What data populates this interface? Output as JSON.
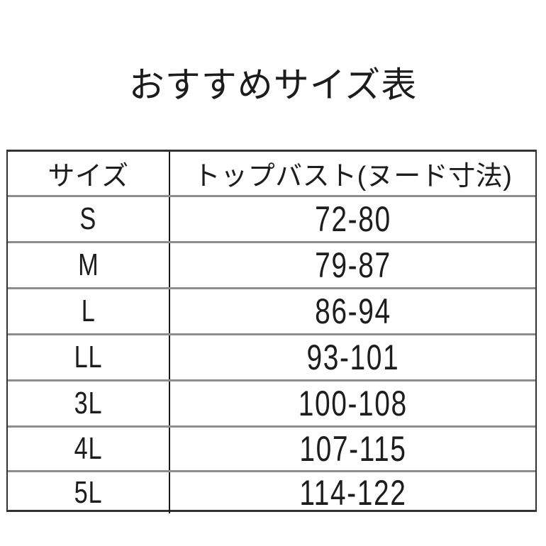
{
  "title": "おすすめサイズ表",
  "table": {
    "headers": {
      "size": "サイズ",
      "bust": "トップバスト(ヌード寸法)"
    },
    "rows": [
      {
        "size": "S",
        "bust": "72-80"
      },
      {
        "size": "M",
        "bust": "79-87"
      },
      {
        "size": "L",
        "bust": "86-94"
      },
      {
        "size": "LL",
        "bust": "93-101"
      },
      {
        "size": "3L",
        "bust": "100-108"
      },
      {
        "size": "4L",
        "bust": "107-115"
      },
      {
        "size": "5L",
        "bust": "114-122"
      }
    ]
  },
  "colors": {
    "background": "#ffffff",
    "text": "#1d1d1d",
    "outer_border": "#333333",
    "row_divider": "#8d8d8d",
    "column_divider": "#1a1a1a"
  },
  "chart_data": {
    "type": "table",
    "title": "おすすめサイズ表",
    "columns": [
      "サイズ",
      "トップバスト(ヌード寸法)"
    ],
    "rows": [
      [
        "S",
        "72-80"
      ],
      [
        "M",
        "79-87"
      ],
      [
        "L",
        "86-94"
      ],
      [
        "LL",
        "93-101"
      ],
      [
        "3L",
        "100-108"
      ],
      [
        "4L",
        "107-115"
      ],
      [
        "5L",
        "114-122"
      ]
    ]
  }
}
